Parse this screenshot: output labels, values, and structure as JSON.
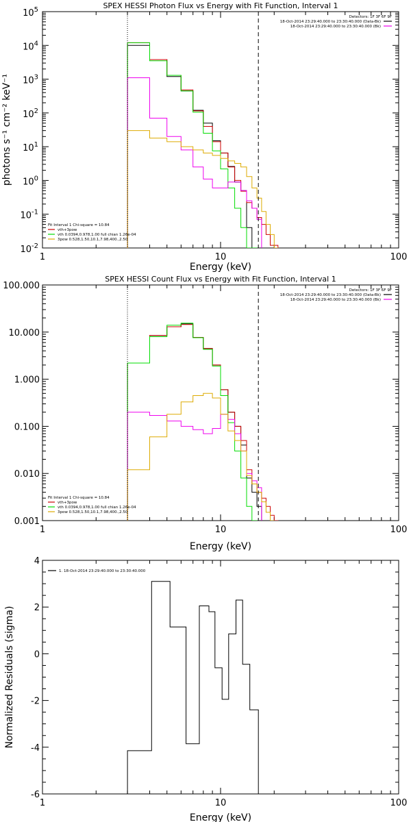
{
  "chart_data": [
    {
      "type": "line",
      "title": "SPEX HESSI Photon Flux vs Energy with Fit Function, Interval 1",
      "xlabel": "Energy (keV)",
      "ylabel": "photons s⁻¹ cm⁻² keV⁻¹",
      "xscale": "log",
      "yscale": "log",
      "xlim": [
        1,
        100
      ],
      "ylim": [
        0.01,
        100000
      ],
      "xticks": [
        {
          "value": 1,
          "label": "1"
        },
        {
          "value": 10,
          "label": "10"
        },
        {
          "value": 100,
          "label": "100"
        }
      ],
      "yticks": [
        {
          "value": 0.01,
          "base": "10",
          "exp": "-2"
        },
        {
          "value": 0.1,
          "base": "10",
          "exp": "-1"
        },
        {
          "value": 1,
          "base": "10",
          "exp": "0"
        },
        {
          "value": 10,
          "base": "10",
          "exp": "1"
        },
        {
          "value": 100,
          "base": "10",
          "exp": "2"
        },
        {
          "value": 1000,
          "base": "10",
          "exp": "3"
        },
        {
          "value": 10000,
          "base": "10",
          "exp": "4"
        },
        {
          "value": 100000,
          "base": "10",
          "exp": "5"
        }
      ],
      "vlines": [
        {
          "x": 3.0,
          "style": "dotted"
        },
        {
          "x": 16.3,
          "style": "dashed"
        }
      ],
      "legend_top": {
        "lines": [
          {
            "text": "Detectors: 1F 3F 6F 9F",
            "color": ""
          },
          {
            "text": "18-Oct-2014 23:29:40.000 to 23:30:40.000 (Data-Bk)",
            "color": "#000000"
          },
          {
            "text": "18-Oct-2014 23:29:40.000 to 23:30:40.000 (Bk)",
            "color": "#ee00ee"
          }
        ]
      },
      "legend_bottom": {
        "lines": [
          {
            "text": "Fit Interval 1   Chi-square = 10.84",
            "color": ""
          },
          {
            "text": "vth+3pow",
            "color": "#cc0000"
          },
          {
            "text": "vth 0.0394,0.978,1.00  full chian 1.26e-04",
            "color": "#00dd00"
          },
          {
            "text": "3pow 0.528,1.50,10.1,7.98,400.,2.50",
            "color": "#ddaa00"
          }
        ]
      },
      "edges": [
        3.0,
        3.5,
        4.0,
        4.5,
        5.0,
        5.5,
        6.0,
        6.5,
        7.0,
        7.5,
        8.0,
        8.5,
        9.0,
        9.5,
        10.0,
        10.5,
        11.0,
        11.5,
        12.0,
        12.5,
        13.0,
        14.0,
        15.0,
        16.0,
        17.0,
        18.0,
        19.0,
        20.0,
        21.0
      ],
      "series": [
        {
          "color": "#000000",
          "values": [
            10000,
            10000,
            3800,
            3800,
            1200,
            1200,
            450,
            450,
            120,
            120,
            50,
            50,
            15,
            15,
            6.5,
            6.5,
            2.6,
            2.6,
            0.9,
            0.9,
            0.5,
            0.04,
            0.01,
            0.01,
            null,
            null,
            null,
            null
          ]
        },
        {
          "color": "#cc0000",
          "values": [
            12000,
            12000,
            3800,
            3800,
            1300,
            1300,
            480,
            480,
            115,
            115,
            40,
            40,
            14,
            14,
            6.5,
            6.5,
            2.5,
            2.5,
            1.0,
            1.0,
            0.48,
            0.22,
            0.15,
            0.08,
            0.05,
            0.025,
            0.012,
            0.012
          ]
        },
        {
          "color": "#00dd00",
          "values": [
            12000,
            12000,
            3500,
            3500,
            1300,
            1300,
            450,
            450,
            105,
            105,
            25,
            25,
            7.5,
            7.5,
            2.2,
            2.2,
            0.6,
            0.6,
            0.15,
            0.15,
            0.04,
            0.01,
            0.01,
            null,
            null,
            null,
            null,
            null
          ]
        },
        {
          "color": "#ee00ee",
          "values": [
            1100,
            1100,
            70,
            70,
            20,
            20,
            8,
            8,
            2.5,
            2.5,
            1.1,
            1.1,
            0.6,
            0.6,
            0.6,
            0.6,
            0.9,
            0.9,
            0.9,
            0.9,
            0.5,
            0.25,
            0.15,
            0.07,
            null,
            null,
            null,
            null
          ]
        },
        {
          "color": "#ddaa00",
          "values": [
            30,
            30,
            18,
            18,
            14,
            14,
            10,
            10,
            8,
            8,
            6.5,
            6.5,
            5.5,
            5.5,
            4.5,
            4.5,
            3.8,
            3.8,
            3.2,
            3.2,
            2.5,
            1.3,
            0.6,
            0.3,
            0.12,
            0.05,
            0.025,
            0.01
          ]
        }
      ]
    },
    {
      "type": "line",
      "title": "SPEX HESSI Count Flux vs Energy with Fit Function, Interval 1",
      "xlabel": "Energy (keV)",
      "ylabel": "",
      "xscale": "log",
      "yscale": "log",
      "xlim": [
        1,
        100
      ],
      "ylim": [
        0.001,
        100
      ],
      "xticks": [
        {
          "value": 1,
          "label": "1"
        },
        {
          "value": 10,
          "label": "10"
        },
        {
          "value": 100,
          "label": "100"
        }
      ],
      "yticks": [
        {
          "value": 0.001,
          "label": "0.001"
        },
        {
          "value": 0.01,
          "label": "0.010"
        },
        {
          "value": 0.1,
          "label": "0.100"
        },
        {
          "value": 1,
          "label": "1.000"
        },
        {
          "value": 10,
          "label": "10.000"
        },
        {
          "value": 100,
          "label": "100.000"
        }
      ],
      "vlines": [
        {
          "x": 3.0,
          "style": "dotted"
        },
        {
          "x": 16.3,
          "style": "dashed"
        }
      ],
      "legend_top": {
        "lines": [
          {
            "text": "Detectors: 1F 3F 6F 9F",
            "color": ""
          },
          {
            "text": "18-Oct-2014 23:29:40.000 to 23:30:40.000 (Data-Bk)",
            "color": "#000000"
          },
          {
            "text": "18-Oct-2014 23:29:40.000 to 23:30:40.000 (Bk)",
            "color": "#ee00ee"
          }
        ]
      },
      "legend_bottom": {
        "lines": [
          {
            "text": "Fit Interval 1   Chi-square = 10.84",
            "color": ""
          },
          {
            "text": "vth+3pow",
            "color": "#cc0000"
          },
          {
            "text": "vth 0.0394,0.978,1.00  full chian 1.26e-04",
            "color": "#00dd00"
          },
          {
            "text": "3pow 0.528,1.50,10.1,7.98,400.,2.50",
            "color": "#ddaa00"
          }
        ]
      },
      "edges": [
        3.0,
        3.5,
        4.0,
        4.5,
        5.0,
        5.5,
        6.0,
        6.5,
        7.0,
        7.5,
        8.0,
        8.5,
        9.0,
        9.5,
        10.0,
        10.5,
        11.0,
        11.5,
        12.0,
        12.5,
        13.0,
        14.0,
        15.0,
        16.0,
        17.0,
        18.0,
        19.0,
        20.0,
        21.0
      ],
      "series": [
        {
          "color": "#000000",
          "values": [
            2.2,
            2.2,
            8.5,
            8.5,
            13,
            13,
            15,
            15,
            7.7,
            7.7,
            4.5,
            4.5,
            2.0,
            2.0,
            0.6,
            0.6,
            0.2,
            0.2,
            0.1,
            0.1,
            0.04,
            0.008,
            0.004,
            0.002,
            null,
            null,
            null,
            null
          ]
        },
        {
          "color": "#cc0000",
          "values": [
            2.2,
            2.2,
            8.5,
            8.5,
            13,
            13,
            14.5,
            14.5,
            7.7,
            7.7,
            4.5,
            4.5,
            2.0,
            2.0,
            0.6,
            0.6,
            0.2,
            0.2,
            0.1,
            0.1,
            0.05,
            0.012,
            0.006,
            0.004,
            0.003,
            0.002,
            0.0013,
            0.001
          ]
        },
        {
          "color": "#00dd00",
          "values": [
            2.2,
            2.2,
            8.0,
            8.0,
            14,
            14,
            15.5,
            15.5,
            7.6,
            7.6,
            4.3,
            4.3,
            1.9,
            1.9,
            0.45,
            0.45,
            0.12,
            0.12,
            0.03,
            0.03,
            0.008,
            0.002,
            0.001,
            null,
            null,
            null,
            null,
            null
          ]
        },
        {
          "color": "#ee00ee",
          "values": [
            0.2,
            0.2,
            0.17,
            0.17,
            0.13,
            0.13,
            0.1,
            0.1,
            0.085,
            0.085,
            0.07,
            0.07,
            0.09,
            0.09,
            0.18,
            0.18,
            0.14,
            0.14,
            0.07,
            0.07,
            0.03,
            0.01,
            0.007,
            0.005,
            null,
            null,
            null,
            null
          ]
        },
        {
          "color": "#ddaa00",
          "values": [
            0.012,
            0.012,
            0.06,
            0.06,
            0.18,
            0.18,
            0.33,
            0.33,
            0.45,
            0.45,
            0.5,
            0.5,
            0.4,
            0.4,
            0.18,
            0.18,
            0.08,
            0.08,
            0.05,
            0.05,
            0.03,
            0.009,
            0.006,
            0.004,
            0.0025,
            0.0015,
            0.001,
            null
          ]
        }
      ]
    },
    {
      "type": "line",
      "title": "",
      "xlabel": "Energy (keV)",
      "ylabel": "Normalized Residuals (sigma)",
      "xscale": "log",
      "yscale": "linear",
      "xlim": [
        1,
        100
      ],
      "ylim": [
        -6,
        4
      ],
      "xticks": [
        {
          "value": 1,
          "label": "1"
        },
        {
          "value": 10,
          "label": "10"
        },
        {
          "value": 100,
          "label": "100"
        }
      ],
      "yticks": [
        {
          "value": -6,
          "label": "-6"
        },
        {
          "value": -4,
          "label": "-4"
        },
        {
          "value": -2,
          "label": "-2"
        },
        {
          "value": 0,
          "label": "0"
        },
        {
          "value": 2,
          "label": "2"
        },
        {
          "value": 4,
          "label": "4"
        }
      ],
      "vlines": [],
      "legend_top": {
        "lines": [
          {
            "text": "1. 18-Oct-2014 23:29:40.000 to 23:30:40.000",
            "color": "#000000"
          }
        ]
      },
      "legend_bottom": {
        "lines": []
      },
      "edges": [
        3.0,
        4.1,
        5.2,
        6.4,
        7.6,
        8.6,
        9.3,
        10.2,
        11.1,
        12.2,
        13.3,
        14.6,
        16.3
      ],
      "series": [
        {
          "color": "#000000",
          "values": [
            -4.15,
            3.1,
            1.15,
            -3.85,
            2.05,
            1.8,
            -0.6,
            -1.95,
            0.85,
            2.3,
            -0.45,
            -2.4
          ]
        }
      ]
    }
  ]
}
